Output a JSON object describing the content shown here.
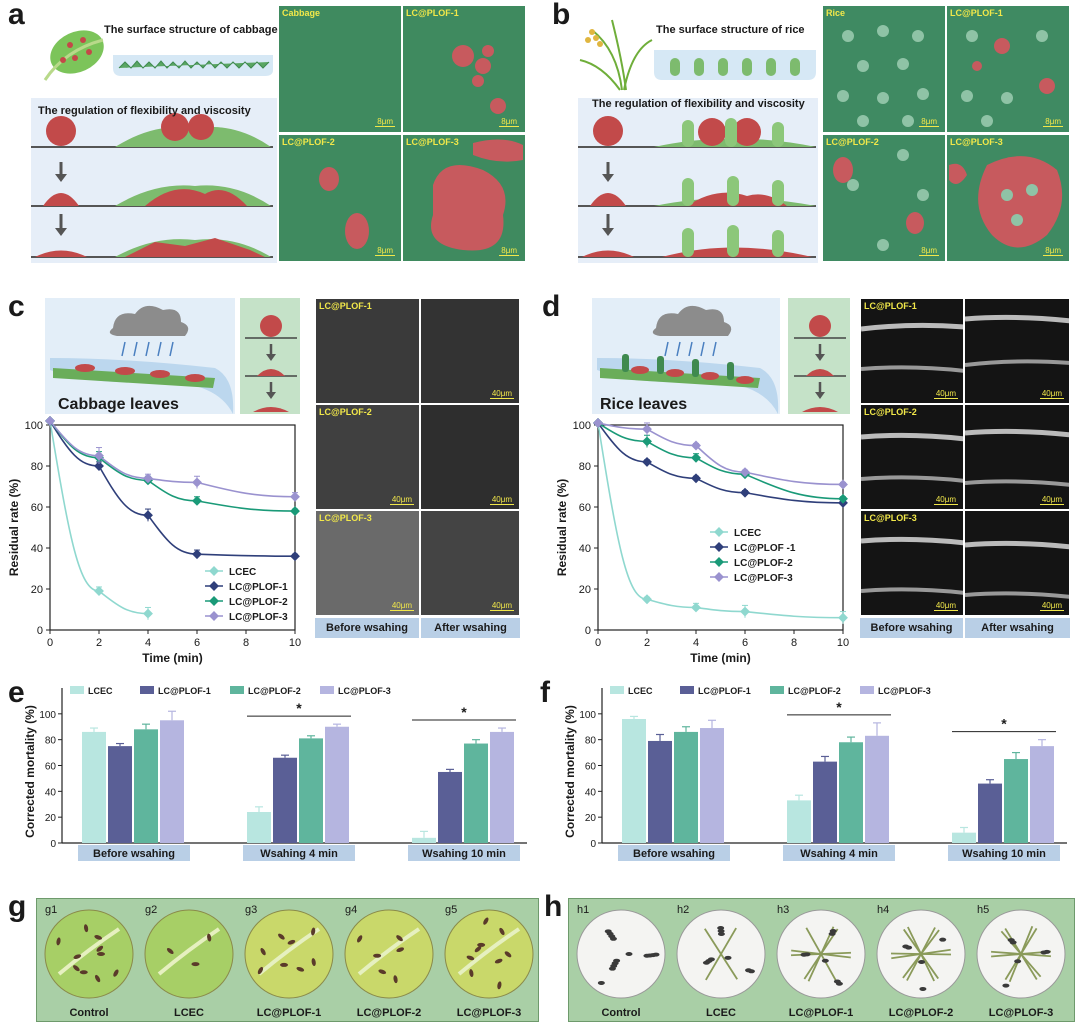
{
  "panels": {
    "a": {
      "label": "a",
      "surface_title": "The surface structure of cabbage",
      "regulation_title": "The regulation of flexibility and viscosity",
      "sem": [
        "Cabbage",
        "LC@PLOF-1",
        "LC@PLOF-2",
        "LC@PLOF-3"
      ],
      "scale": "8μm"
    },
    "b": {
      "label": "b",
      "surface_title": "The surface structure of rice",
      "regulation_title": "The regulation of flexibility and viscosity",
      "sem": [
        "Rice",
        "LC@PLOF-1",
        "LC@PLOF-2",
        "LC@PLOF-3"
      ],
      "scale": "8μm"
    },
    "c": {
      "label": "c",
      "leaf_title": "Cabbage leaves",
      "fluo": [
        "LC@PLOF-1",
        "LC@PLOF-2",
        "LC@PLOF-3"
      ],
      "scale": "40μm",
      "before": "Before wsahing",
      "after": "After wsahing"
    },
    "d": {
      "label": "d",
      "leaf_title": "Rice leaves",
      "fluo": [
        "LC@PLOF-1",
        "LC@PLOF-2",
        "LC@PLOF-3"
      ],
      "scale": "40μm",
      "before": "Before wsahing",
      "after": "After wsahing"
    },
    "e": {
      "label": "e"
    },
    "f": {
      "label": "f"
    },
    "g": {
      "label": "g",
      "subs": [
        "g1",
        "g2",
        "g3",
        "g4",
        "g5"
      ],
      "names": [
        "Control",
        "LCEC",
        "LC@PLOF-1",
        "LC@PLOF-2",
        "LC@PLOF-3"
      ]
    },
    "h": {
      "label": "h",
      "subs": [
        "h1",
        "h2",
        "h3",
        "h4",
        "h5"
      ],
      "names": [
        "Control",
        "LCEC",
        "LC@PLOF-1",
        "LC@PLOF-2",
        "LC@PLOF-3"
      ]
    }
  },
  "colors": {
    "LCEC": "#8fd8cf",
    "PLOF1": "#2f3f7a",
    "PLOF2": "#1a9a78",
    "PLOF3": "#9a92cf",
    "bar_LCEC": "#b8e6e0",
    "bar_PLOF1": "#5a5f96",
    "bar_PLOF2": "#5fb59d",
    "bar_PLOF3": "#b5b5e0"
  },
  "chart_data": [
    {
      "id": "c",
      "type": "line",
      "xlabel": "Time (min)",
      "ylabel": "Residual rate (%)",
      "xlim": [
        0,
        10
      ],
      "ylim": [
        0,
        100
      ],
      "xticks": [
        0,
        2,
        4,
        6,
        8,
        10
      ],
      "yticks": [
        0,
        20,
        40,
        60,
        80,
        100
      ],
      "legend": "bottom-right",
      "series": [
        {
          "name": "LCEC",
          "x": [
            0,
            2,
            4
          ],
          "y": [
            102,
            19,
            8
          ],
          "err": [
            0,
            2,
            3
          ]
        },
        {
          "name": "LC@PLOF-1",
          "x": [
            0,
            2,
            4,
            6,
            10
          ],
          "y": [
            102,
            80,
            56,
            37,
            36
          ],
          "err": [
            0,
            2,
            3,
            2,
            1
          ]
        },
        {
          "name": "LC@PLOF-2",
          "x": [
            0,
            2,
            4,
            6,
            10
          ],
          "y": [
            102,
            84,
            73,
            63,
            58
          ],
          "err": [
            0,
            3,
            2,
            2,
            1
          ]
        },
        {
          "name": "LC@PLOF-3",
          "x": [
            0,
            2,
            4,
            6,
            10
          ],
          "y": [
            102,
            85,
            74,
            72,
            65
          ],
          "err": [
            0,
            4,
            2,
            3,
            2
          ]
        }
      ]
    },
    {
      "id": "d",
      "type": "line",
      "xlabel": "Time (min)",
      "ylabel": "Residual rate (%)",
      "xlim": [
        0,
        10
      ],
      "ylim": [
        0,
        100
      ],
      "xticks": [
        0,
        2,
        4,
        6,
        8,
        10
      ],
      "yticks": [
        0,
        20,
        40,
        60,
        80,
        100
      ],
      "legend": "center-right",
      "series": [
        {
          "name": "LCEC",
          "x": [
            0,
            2,
            4,
            6,
            10
          ],
          "y": [
            101,
            15,
            11,
            9,
            6
          ],
          "err": [
            0,
            1,
            2,
            3,
            3
          ]
        },
        {
          "name": "LC@PLOF -1",
          "x": [
            0,
            2,
            4,
            6,
            10
          ],
          "y": [
            101,
            82,
            74,
            67,
            62
          ],
          "err": [
            0,
            1,
            1,
            1,
            1
          ]
        },
        {
          "name": "LC@PLOF-2",
          "x": [
            0,
            2,
            4,
            6,
            10
          ],
          "y": [
            101,
            92,
            84,
            76,
            64
          ],
          "err": [
            0,
            3,
            2,
            1,
            1
          ]
        },
        {
          "name": "LC@PLOF-3",
          "x": [
            0,
            2,
            4,
            6,
            10
          ],
          "y": [
            101,
            98,
            90,
            77,
            71
          ],
          "err": [
            0,
            3,
            1,
            1,
            1
          ]
        }
      ]
    },
    {
      "id": "e",
      "type": "bar",
      "ylabel": "Corrected mortality (%)",
      "ylim": [
        0,
        120
      ],
      "yticks": [
        0,
        20,
        40,
        60,
        80,
        100
      ],
      "categories": [
        "Before wsahing",
        "Wsahing 4 min",
        "Wsahing 10 min"
      ],
      "series": [
        {
          "name": "LCEC",
          "values": [
            86,
            24,
            4
          ],
          "err": [
            3,
            4,
            5
          ]
        },
        {
          "name": "LC@PLOF-1",
          "values": [
            75,
            66,
            55
          ],
          "err": [
            2,
            2,
            2
          ]
        },
        {
          "name": "LC@PLOF-2",
          "values": [
            88,
            81,
            77
          ],
          "err": [
            4,
            2,
            3
          ]
        },
        {
          "name": "LC@PLOF-3",
          "values": [
            95,
            90,
            86
          ],
          "err": [
            7,
            2,
            3
          ]
        }
      ],
      "significance": [
        {
          "category": "Wsahing 4 min",
          "label": "*"
        },
        {
          "category": "Wsahing 10 min",
          "label": "*"
        }
      ]
    },
    {
      "id": "f",
      "type": "bar",
      "ylabel": "Corrected mortality (%)",
      "ylim": [
        0,
        120
      ],
      "yticks": [
        0,
        20,
        40,
        60,
        80,
        100
      ],
      "categories": [
        "Before wsahing",
        "Wsahing 4 min",
        "Wsahing 10 min"
      ],
      "series": [
        {
          "name": "LCEC",
          "values": [
            96,
            33,
            8
          ],
          "err": [
            2,
            4,
            4
          ]
        },
        {
          "name": "LC@PLOF-1",
          "values": [
            79,
            63,
            46
          ],
          "err": [
            5,
            4,
            3
          ]
        },
        {
          "name": "LC@PLOF-2",
          "values": [
            86,
            78,
            65
          ],
          "err": [
            4,
            4,
            5
          ]
        },
        {
          "name": "LC@PLOF-3",
          "values": [
            89,
            83,
            75
          ],
          "err": [
            6,
            10,
            5
          ]
        }
      ],
      "significance": [
        {
          "category": "Wsahing 4 min",
          "label": "*"
        },
        {
          "category": "Wsahing 10 min",
          "label": "*"
        }
      ]
    }
  ]
}
